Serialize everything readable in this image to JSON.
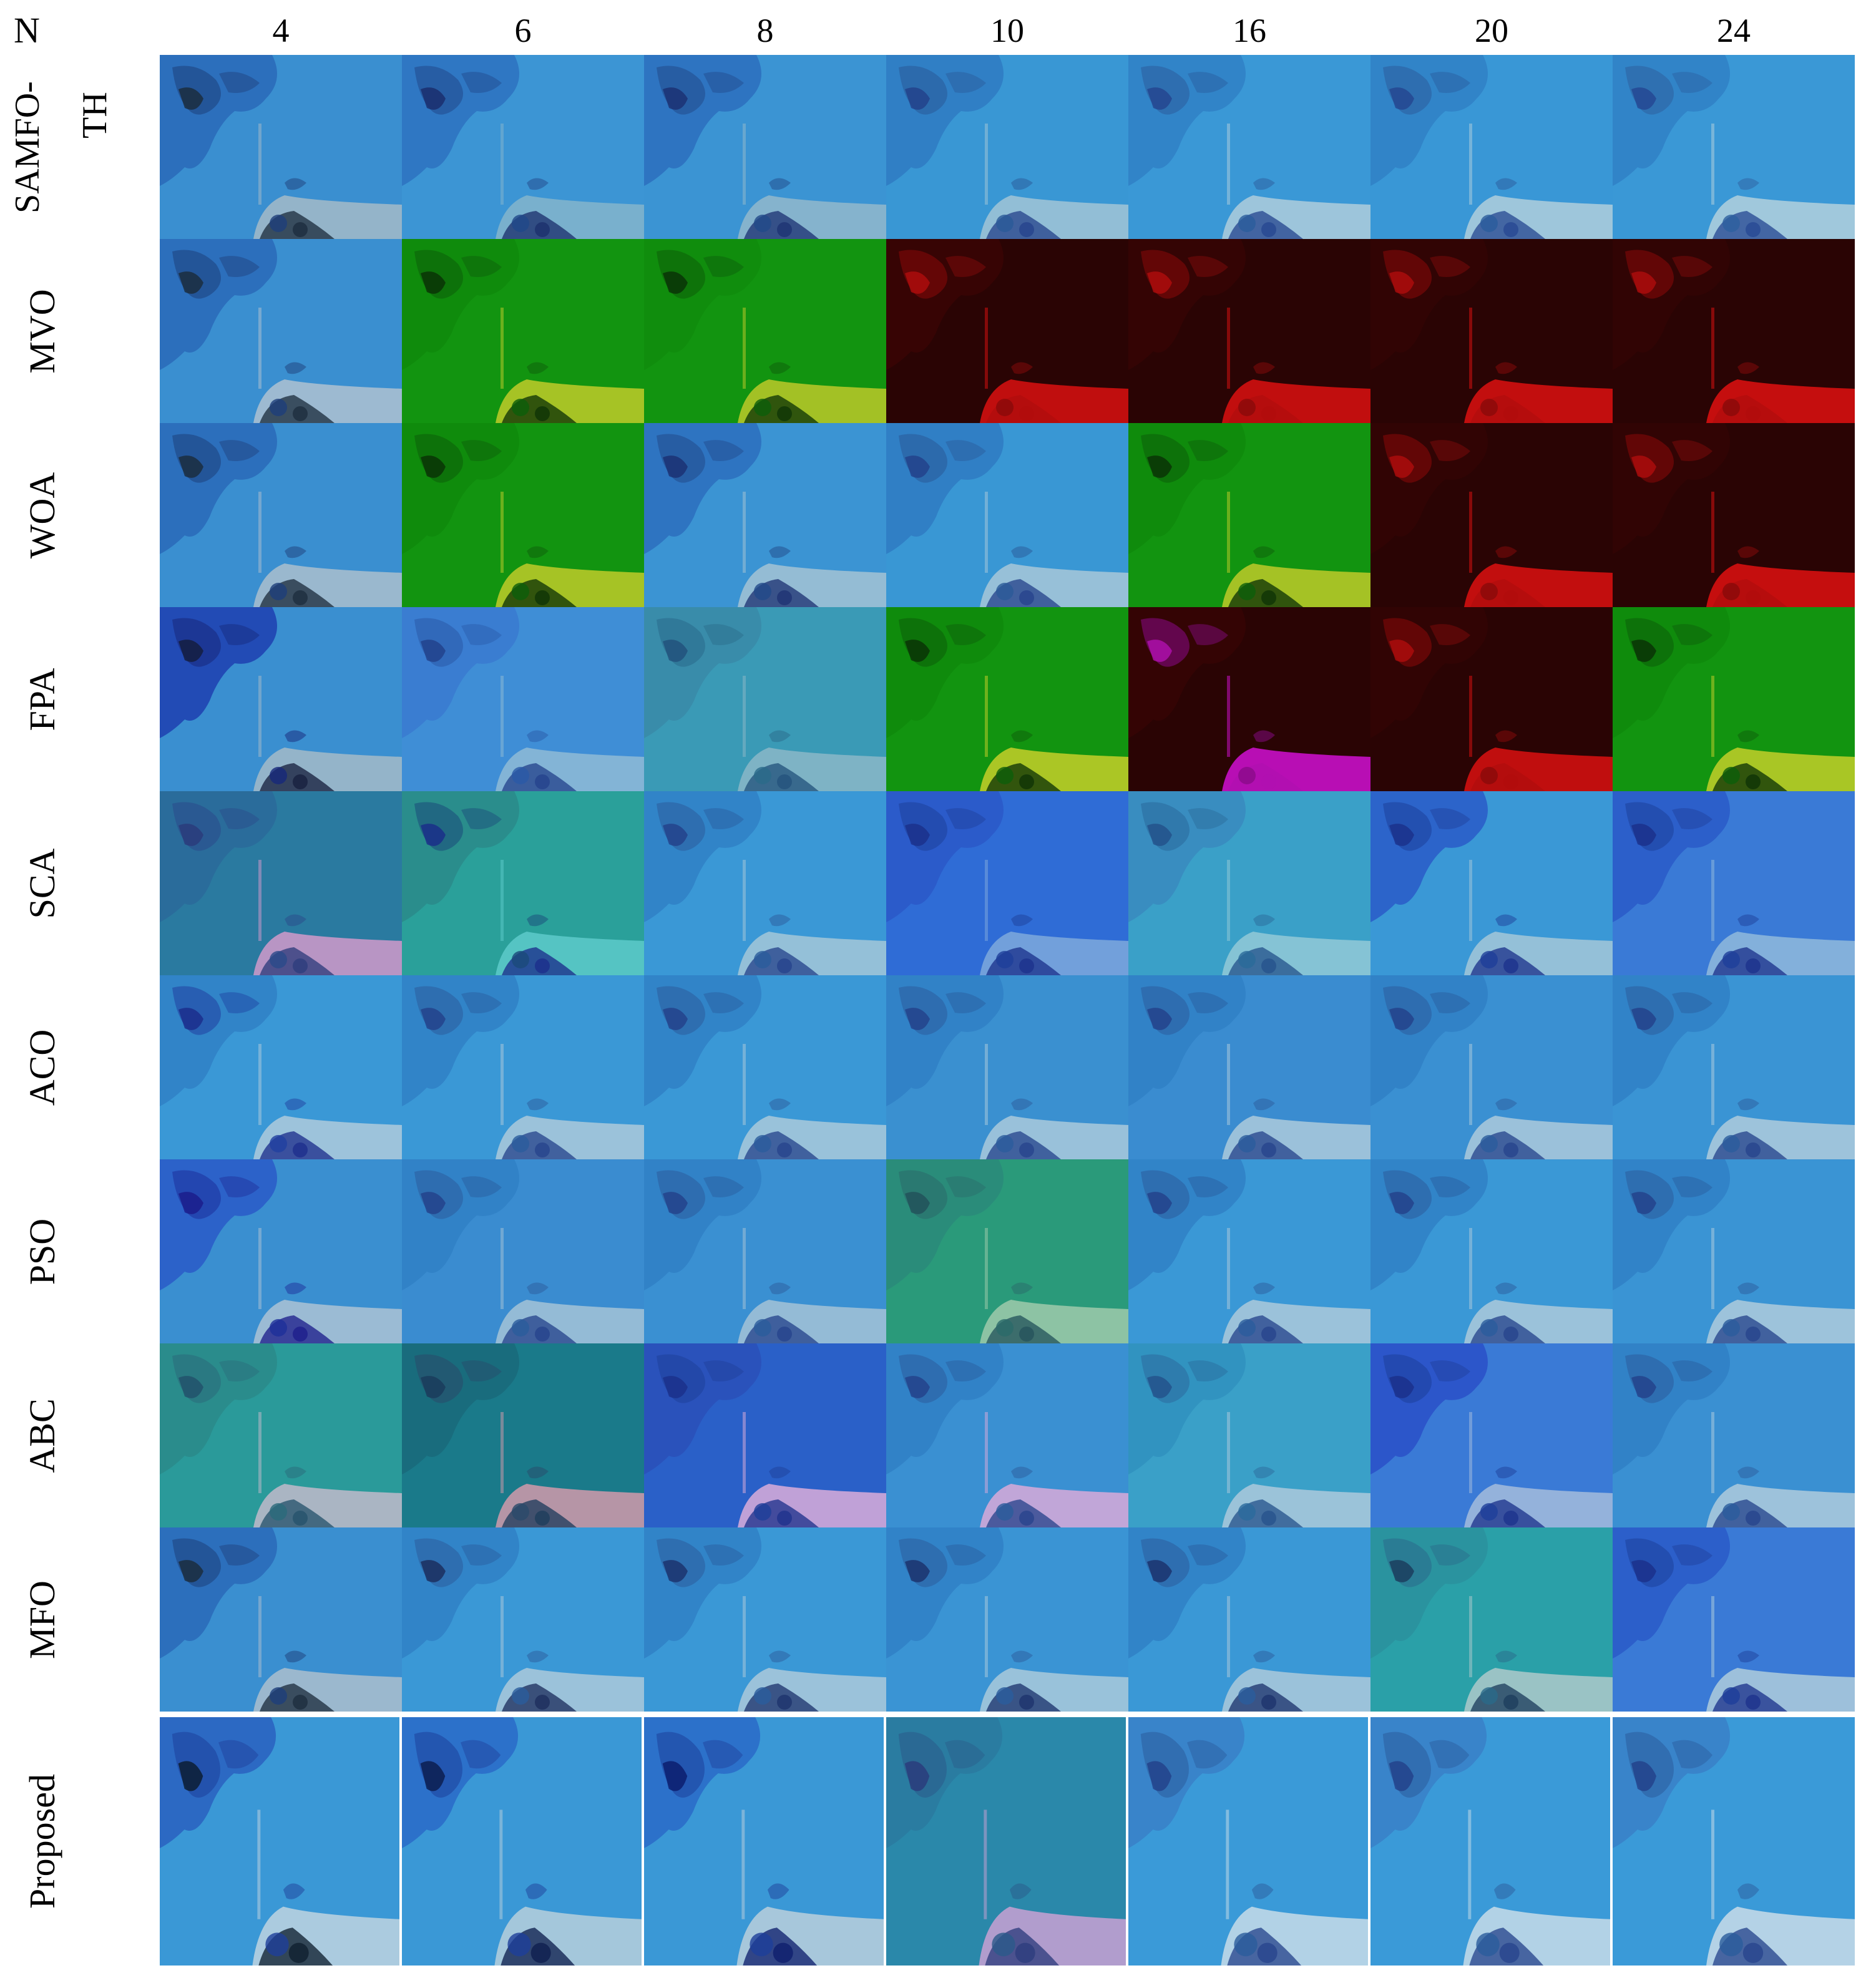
{
  "header": {
    "n_label": "N"
  },
  "columns": [
    "4",
    "6",
    "8",
    "10",
    "16",
    "20",
    "24"
  ],
  "rows": [
    {
      "name": "SAMFO-TH",
      "label_lines": [
        "SAMFO-",
        "TH"
      ],
      "tiles": [
        {
          "bg": "#3a8fd0",
          "land": "#2a6ab8",
          "fg": "#1e3f7a",
          "dark": "#1a2a3a",
          "shore": "#9fb8c8"
        },
        {
          "bg": "#3c95d4",
          "land": "#2d72c0",
          "fg": "#21488a",
          "dark": "#1a2c6a",
          "shore": "#7fb2cc"
        },
        {
          "bg": "#3b94d3",
          "land": "#2d6fbd",
          "fg": "#224a8a",
          "dark": "#1b2f70",
          "shore": "#8eb6cc"
        },
        {
          "bg": "#3997d4",
          "land": "#2f7ac2",
          "fg": "#2a5a98",
          "dark": "#23408a",
          "shore": "#9cc2d6"
        },
        {
          "bg": "#3a98d6",
          "land": "#3080c6",
          "fg": "#2b5c9c",
          "dark": "#24438e",
          "shore": "#a8cadc"
        },
        {
          "bg": "#3997d6",
          "land": "#3080c6",
          "fg": "#2b5c9c",
          "dark": "#244590",
          "shore": "#aacbdc"
        },
        {
          "bg": "#3a98d6",
          "land": "#3080c6",
          "fg": "#2d609f",
          "dark": "#244692",
          "shore": "#accddd"
        }
      ]
    },
    {
      "name": "MVO",
      "label_lines": [
        "MVO"
      ],
      "tiles": [
        {
          "bg": "#3a8fd0",
          "land": "#2a6ab8",
          "fg": "#1e3f7a",
          "dark": "#1a2a3a",
          "shore": "#a9bfd0"
        },
        {
          "bg": "#129410",
          "land": "#0f8a0c",
          "fg": "#0d5e0a",
          "dark": "#0a2f05",
          "shore": "#b7c828"
        },
        {
          "bg": "#129410",
          "land": "#108c0d",
          "fg": "#0d5e0a",
          "dark": "#0a3006",
          "shore": "#b4c528"
        },
        {
          "bg": "#2a0404",
          "land": "#3a0505",
          "fg": "#8a0a0a",
          "dark": "#b00d0d",
          "shore": "#d01010"
        },
        {
          "bg": "#2a0404",
          "land": "#360505",
          "fg": "#8a0a0a",
          "dark": "#b00d0d",
          "shore": "#d21010"
        },
        {
          "bg": "#2a0404",
          "land": "#330505",
          "fg": "#8a0a0a",
          "dark": "#b00d0d",
          "shore": "#d31010"
        },
        {
          "bg": "#2a0404",
          "land": "#320505",
          "fg": "#8a0a0a",
          "dark": "#b00d0d",
          "shore": "#d61010"
        }
      ]
    },
    {
      "name": "WOA",
      "label_lines": [
        "WOA"
      ],
      "tiles": [
        {
          "bg": "#3a8fd0",
          "land": "#2a6ab8",
          "fg": "#1e3f7a",
          "dark": "#1a2a3a",
          "shore": "#a5bccd"
        },
        {
          "bg": "#129410",
          "land": "#0f8a0c",
          "fg": "#0d5e0a",
          "dark": "#0a2f05",
          "shore": "#b7c828"
        },
        {
          "bg": "#3b94d3",
          "land": "#2d6fbd",
          "fg": "#224a8a",
          "dark": "#1b2f70",
          "shore": "#9fc0d4"
        },
        {
          "bg": "#3997d4",
          "land": "#2f7ac2",
          "fg": "#2a5a98",
          "dark": "#23408a",
          "shore": "#a2c4d8"
        },
        {
          "bg": "#129410",
          "land": "#0f8a0c",
          "fg": "#0d5e0a",
          "dark": "#0a2f05",
          "shore": "#b6c728"
        },
        {
          "bg": "#2a0404",
          "land": "#330505",
          "fg": "#8a0a0a",
          "dark": "#b00d0d",
          "shore": "#d31010"
        },
        {
          "bg": "#2a0404",
          "land": "#320505",
          "fg": "#8a0a0a",
          "dark": "#b00d0d",
          "shore": "#d61010"
        }
      ]
    },
    {
      "name": "FPA",
      "label_lines": [
        "FPA"
      ],
      "tiles": [
        {
          "bg": "#3a8fd0",
          "land": "#1f3fb0",
          "fg": "#17287a",
          "dark": "#141c3a",
          "shore": "#9fb8c8"
        },
        {
          "bg": "#3f8ed6",
          "land": "#3a7ad0",
          "fg": "#2a5aa8",
          "dark": "#22408a",
          "shore": "#8bb8d6"
        },
        {
          "bg": "#3a9ab6",
          "land": "#3a8aa8",
          "fg": "#2a6a8a",
          "dark": "#22507a",
          "shore": "#86b6c6"
        },
        {
          "bg": "#129410",
          "land": "#0f8a0c",
          "fg": "#0d5e0a",
          "dark": "#0a2f05",
          "shore": "#bccb28"
        },
        {
          "bg": "#2a0404",
          "land": "#360505",
          "fg": "#8a0a8a",
          "dark": "#b010b0",
          "shore": "#c810c8"
        },
        {
          "bg": "#2a0404",
          "land": "#330505",
          "fg": "#8a0a0a",
          "dark": "#b00d0d",
          "shore": "#d01010"
        },
        {
          "bg": "#129410",
          "land": "#0f8a0c",
          "fg": "#0d5e0a",
          "dark": "#0a2f05",
          "shore": "#bacb28"
        }
      ]
    },
    {
      "name": "SCA",
      "label_lines": [
        "SCA"
      ],
      "tiles": [
        {
          "bg": "#2a7aa0",
          "land": "#2a6a9a",
          "fg": "#2a4a8a",
          "dark": "#2a3a7a",
          "shore": "#c898c8"
        },
        {
          "bg": "#2aa09a",
          "land": "#2a8a8a",
          "fg": "#1a4a7a",
          "dark": "#1a2a8a",
          "shore": "#5ac8c8"
        },
        {
          "bg": "#3a98d6",
          "land": "#3080c6",
          "fg": "#2b5c9c",
          "dark": "#23408a",
          "shore": "#9ec4d8"
        },
        {
          "bg": "#2f6cd6",
          "land": "#2a58c8",
          "fg": "#1e3f9a",
          "dark": "#1a2f8a",
          "shore": "#7aa6dc"
        },
        {
          "bg": "#3aa0c8",
          "land": "#3a8abe",
          "fg": "#2a6a9a",
          "dark": "#23508a",
          "shore": "#8ec6d6"
        },
        {
          "bg": "#3a98d6",
          "land": "#2a5ac8",
          "fg": "#1e3f9a",
          "dark": "#1a2f8a",
          "shore": "#9ec4d8"
        },
        {
          "bg": "#3a7ad6",
          "land": "#2a5ac8",
          "fg": "#1e3f9a",
          "dark": "#1a2f8a",
          "shore": "#8cb6dc"
        }
      ]
    },
    {
      "name": "ACO",
      "label_lines": [
        "ACO"
      ],
      "tiles": [
        {
          "bg": "#3a98d6",
          "land": "#3080c6",
          "fg": "#2040a0",
          "dark": "#1a2a8a",
          "shore": "#a8c8dc"
        },
        {
          "bg": "#3a98d6",
          "land": "#3080c6",
          "fg": "#2b5c9c",
          "dark": "#23408a",
          "shore": "#a6c6da"
        },
        {
          "bg": "#3a98d6",
          "land": "#3080c6",
          "fg": "#2b5c9c",
          "dark": "#23408a",
          "shore": "#a4c6da"
        },
        {
          "bg": "#3a90d0",
          "land": "#3080c6",
          "fg": "#2b5c9c",
          "dark": "#23408a",
          "shore": "#a4c6da"
        },
        {
          "bg": "#3a8cd0",
          "land": "#3080c6",
          "fg": "#2b5c9c",
          "dark": "#23408a",
          "shore": "#a6c6da"
        },
        {
          "bg": "#3a90d2",
          "land": "#3080c6",
          "fg": "#2b5c9c",
          "dark": "#23408a",
          "shore": "#a6c6da"
        },
        {
          "bg": "#3a94d4",
          "land": "#3080c6",
          "fg": "#2b5c9c",
          "dark": "#23408a",
          "shore": "#a8c8dc"
        }
      ]
    },
    {
      "name": "PSO",
      "label_lines": [
        "PSO"
      ],
      "tiles": [
        {
          "bg": "#3a8fd0",
          "land": "#2a5ac8",
          "fg": "#1e2f9a",
          "dark": "#1a1a8a",
          "shore": "#a6c0d4"
        },
        {
          "bg": "#3a8cd0",
          "land": "#3080c6",
          "fg": "#2b5c9c",
          "dark": "#23408a",
          "shore": "#9ec0d6"
        },
        {
          "bg": "#3a90d2",
          "land": "#3080c6",
          "fg": "#2b5c9c",
          "dark": "#23408a",
          "shore": "#9ec0d6"
        },
        {
          "bg": "#2a9a7a",
          "land": "#2a8a7a",
          "fg": "#2a6a6a",
          "dark": "#22505a",
          "shore": "#98c8a8"
        },
        {
          "bg": "#3a98d6",
          "land": "#3080c6",
          "fg": "#2b5c9c",
          "dark": "#23408a",
          "shore": "#a6c6da"
        },
        {
          "bg": "#3a98d6",
          "land": "#3080c6",
          "fg": "#2b5c9c",
          "dark": "#23408a",
          "shore": "#a6c6da"
        },
        {
          "bg": "#3a94d4",
          "land": "#3080c6",
          "fg": "#2b5c9c",
          "dark": "#23408a",
          "shore": "#a8c8dc"
        }
      ]
    },
    {
      "name": "ABC",
      "label_lines": [
        "ABC"
      ],
      "tiles": [
        {
          "bg": "#2a9a9a",
          "land": "#2a8a8a",
          "fg": "#2a6a7a",
          "dark": "#22506a",
          "shore": "#b8b8c8"
        },
        {
          "bg": "#1a7a8a",
          "land": "#1a6a7a",
          "fg": "#2a4a6a",
          "dark": "#1a3a5a",
          "shore": "#c898a8"
        },
        {
          "bg": "#2a60c8",
          "land": "#2a50b8",
          "fg": "#1e3f9a",
          "dark": "#1a2f8a",
          "shore": "#d0a8d8"
        },
        {
          "bg": "#3a90d2",
          "land": "#3080c6",
          "fg": "#2b5c9c",
          "dark": "#23408a",
          "shore": "#d0a8d8"
        },
        {
          "bg": "#3aa0c8",
          "land": "#3090be",
          "fg": "#2b6a9c",
          "dark": "#23508a",
          "shore": "#a6c6da"
        },
        {
          "bg": "#3a7ad6",
          "land": "#2a50c8",
          "fg": "#1e3f9a",
          "dark": "#1a2f8a",
          "shore": "#9eb8dc"
        },
        {
          "bg": "#3a90d2",
          "land": "#3080c6",
          "fg": "#2b5c9c",
          "dark": "#23408a",
          "shore": "#a8c8dc"
        }
      ]
    },
    {
      "name": "MFO",
      "label_lines": [
        "MFO"
      ],
      "tiles": [
        {
          "bg": "#3a8fd0",
          "land": "#2a6ab8",
          "fg": "#1e3f7a",
          "dark": "#1a2a3a",
          "shore": "#a6bccd"
        },
        {
          "bg": "#3a98d6",
          "land": "#3080c6",
          "fg": "#2b5c9c",
          "dark": "#1a2a5a",
          "shore": "#a6c6da"
        },
        {
          "bg": "#3a98d6",
          "land": "#3080c6",
          "fg": "#2b5c9c",
          "dark": "#1a2f6a",
          "shore": "#a6c6da"
        },
        {
          "bg": "#3a94d4",
          "land": "#3080c6",
          "fg": "#2b5c9c",
          "dark": "#1a2f6a",
          "shore": "#a4c6da"
        },
        {
          "bg": "#3a98d6",
          "land": "#3080c6",
          "fg": "#2b5c9c",
          "dark": "#1a2f6a",
          "shore": "#a6c6da"
        },
        {
          "bg": "#2aa0a8",
          "land": "#2a909e",
          "fg": "#2a6a8a",
          "dark": "#1a3a5a",
          "shore": "#a6c6c8"
        },
        {
          "bg": "#3a7ad6",
          "land": "#2a5ac8",
          "fg": "#1e3f9a",
          "dark": "#1a2f8a",
          "shore": "#a8c8dc"
        }
      ]
    }
  ],
  "proposed": {
    "name": "Proposed",
    "tiles": [
      {
        "bg": "#3a98d6",
        "land": "#2a60c0",
        "fg": "#1e3f9a",
        "dark": "#0a1a2a",
        "shore": "#b8d0e0"
      },
      {
        "bg": "#3a98d6",
        "land": "#2a6ac8",
        "fg": "#1e3f9a",
        "dark": "#0a1a4a",
        "shore": "#b0ccdc"
      },
      {
        "bg": "#3a98d6",
        "land": "#2a6ac8",
        "fg": "#1e3f9a",
        "dark": "#0a1a6a",
        "shore": "#b4ccdc"
      },
      {
        "bg": "#2a88aa",
        "land": "#2a7aa0",
        "fg": "#2a5a8a",
        "dark": "#2a3a7a",
        "shore": "#c0a0d0"
      },
      {
        "bg": "#3a9ad8",
        "land": "#3a80c8",
        "fg": "#2b5c9c",
        "dark": "#23408a",
        "shore": "#c0d8e8"
      },
      {
        "bg": "#3a9ad8",
        "land": "#3a80c8",
        "fg": "#2b5c9c",
        "dark": "#23408a",
        "shore": "#c0d8e8"
      },
      {
        "bg": "#3a9ad8",
        "land": "#3a80c8",
        "fg": "#2b5c9c",
        "dark": "#23408a",
        "shore": "#c2d8e8"
      }
    ]
  }
}
